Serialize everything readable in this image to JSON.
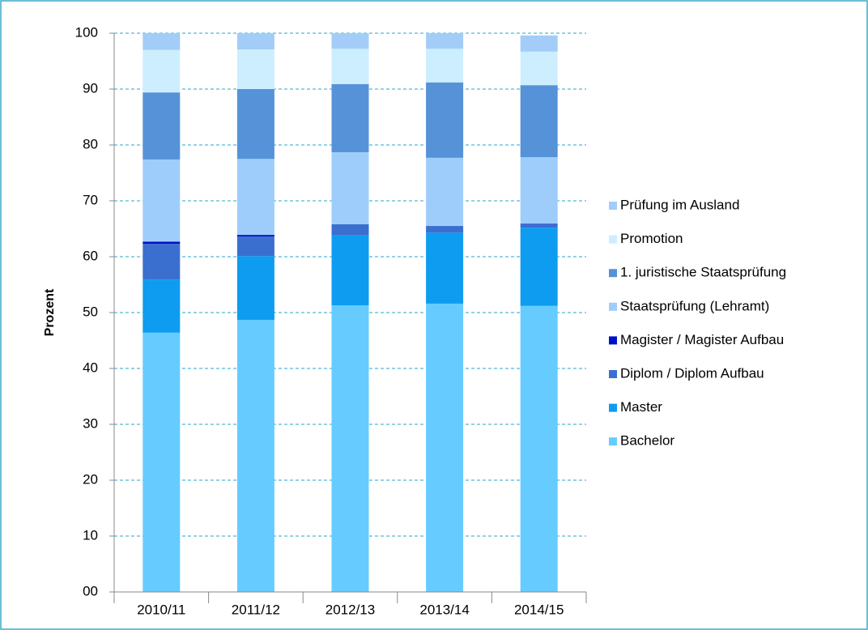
{
  "chart_data": {
    "type": "stacked_bar",
    "y_label": "Prozent",
    "categories": [
      "2010/11",
      "2011/12",
      "2012/13",
      "2013/14",
      "2014/15"
    ],
    "series": [
      {
        "name": "Bachelor",
        "color": "#66ccff",
        "values": [
          46.4,
          48.7,
          51.3,
          51.6,
          51.2
        ]
      },
      {
        "name": "Master",
        "color": "#0d9cf0",
        "values": [
          9.5,
          11.4,
          12.5,
          12.7,
          14.0
        ]
      },
      {
        "name": "Diplom / Diplom Aufbau",
        "color": "#3a6fd0",
        "values": [
          6.4,
          3.5,
          2.0,
          1.2,
          0.6
        ]
      },
      {
        "name": "Magister / Magister Aufbau",
        "color": "#0010c8",
        "values": [
          0.4,
          0.3,
          0,
          0,
          0.1
        ]
      },
      {
        "name": "Staatsprüfung (Lehramt)",
        "color": "#9fcdfb",
        "values": [
          14.7,
          13.6,
          12.9,
          12.2,
          11.9
        ]
      },
      {
        "name": "1. juristische Staatsprüfung",
        "color": "#5692d8",
        "values": [
          12.0,
          12.5,
          12.2,
          13.5,
          12.9
        ]
      },
      {
        "name": "Promotion",
        "color": "#cdeefe",
        "values": [
          7.6,
          7.1,
          6.3,
          6.0,
          6.0
        ]
      },
      {
        "name": "Prüfung im Ausland",
        "color": "#a3cdf8",
        "values": [
          3.0,
          2.9,
          2.8,
          2.8,
          2.9
        ]
      }
    ],
    "ylim": [
      0,
      100
    ],
    "yticks": [
      {
        "value": 0,
        "label": "00"
      },
      10,
      20,
      30,
      40,
      50,
      60,
      70,
      80,
      90,
      100
    ],
    "grid": true,
    "legend": "right"
  }
}
